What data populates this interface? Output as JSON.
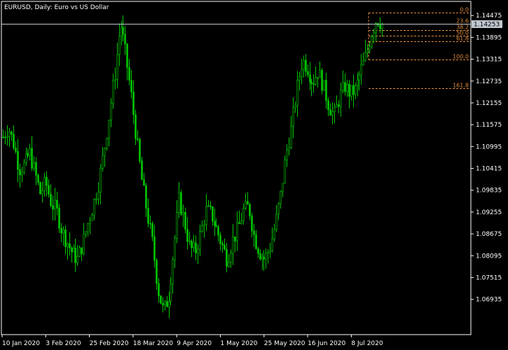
{
  "chart_data": {
    "type": "candlestick",
    "title": "EURUSD, Daily:  Euro vs US Dollar",
    "symbol": "EURUSD",
    "timeframe": "Daily",
    "description": "Euro vs US Dollar",
    "current_price": "1.14253",
    "colors": {
      "background": "#000000",
      "bull": "#00c800",
      "bear": "#00c800",
      "frame": "#ffffff",
      "fib": "#e08a3c",
      "price_line": "#c0c8d0",
      "price_tag": "#c0c8d0"
    },
    "ylim": [
      1.06,
      1.1485
    ],
    "y_ticks": [
      "1.14475",
      "1.13895",
      "1.13315",
      "1.12735",
      "1.12155",
      "1.11575",
      "1.10995",
      "1.10415",
      "1.09835",
      "1.09255",
      "1.08675",
      "1.08095",
      "1.07515",
      "1.06935"
    ],
    "x_ticks": [
      "10 Jan 2020",
      "3 Feb 2020",
      "25 Feb 2020",
      "18 Mar 2020",
      "9 Apr 2020",
      "1 May 2020",
      "25 May 2020",
      "16 Jun 2020",
      "8 Jul 2020"
    ],
    "fibonacci": [
      {
        "label": "0.0",
        "price": 1.1455
      },
      {
        "label": "23.6",
        "price": 1.1426
      },
      {
        "label": "38.2",
        "price": 1.1408
      },
      {
        "label": "50.0",
        "price": 1.1393
      },
      {
        "label": "61.8",
        "price": 1.1379
      },
      {
        "label": "100.0",
        "price": 1.133
      },
      {
        "label": "161.8",
        "price": 1.1254
      }
    ],
    "close_path": [
      1.1125,
      1.115,
      1.1105,
      1.104,
      1.105,
      1.1085,
      1.103,
      1.0975,
      1.1005,
      1.095,
      1.093,
      1.0875,
      1.0845,
      1.0815,
      1.08,
      1.0845,
      1.09,
      1.095,
      1.101,
      1.11,
      1.12,
      1.13,
      1.143,
      1.134,
      1.124,
      1.112,
      1.101,
      1.092,
      1.084,
      1.072,
      1.066,
      1.07,
      1.083,
      1.096,
      1.09,
      1.083,
      1.082,
      1.087,
      1.093,
      1.092,
      1.088,
      1.084,
      1.08,
      1.085,
      1.088,
      1.093,
      1.094,
      1.086,
      1.082,
      1.08,
      1.083,
      1.089,
      1.097,
      1.108,
      1.115,
      1.125,
      1.133,
      1.131,
      1.127,
      1.13,
      1.126,
      1.121,
      1.118,
      1.123,
      1.126,
      1.124,
      1.125,
      1.13,
      1.134,
      1.14,
      1.144,
      1.1425
    ]
  }
}
